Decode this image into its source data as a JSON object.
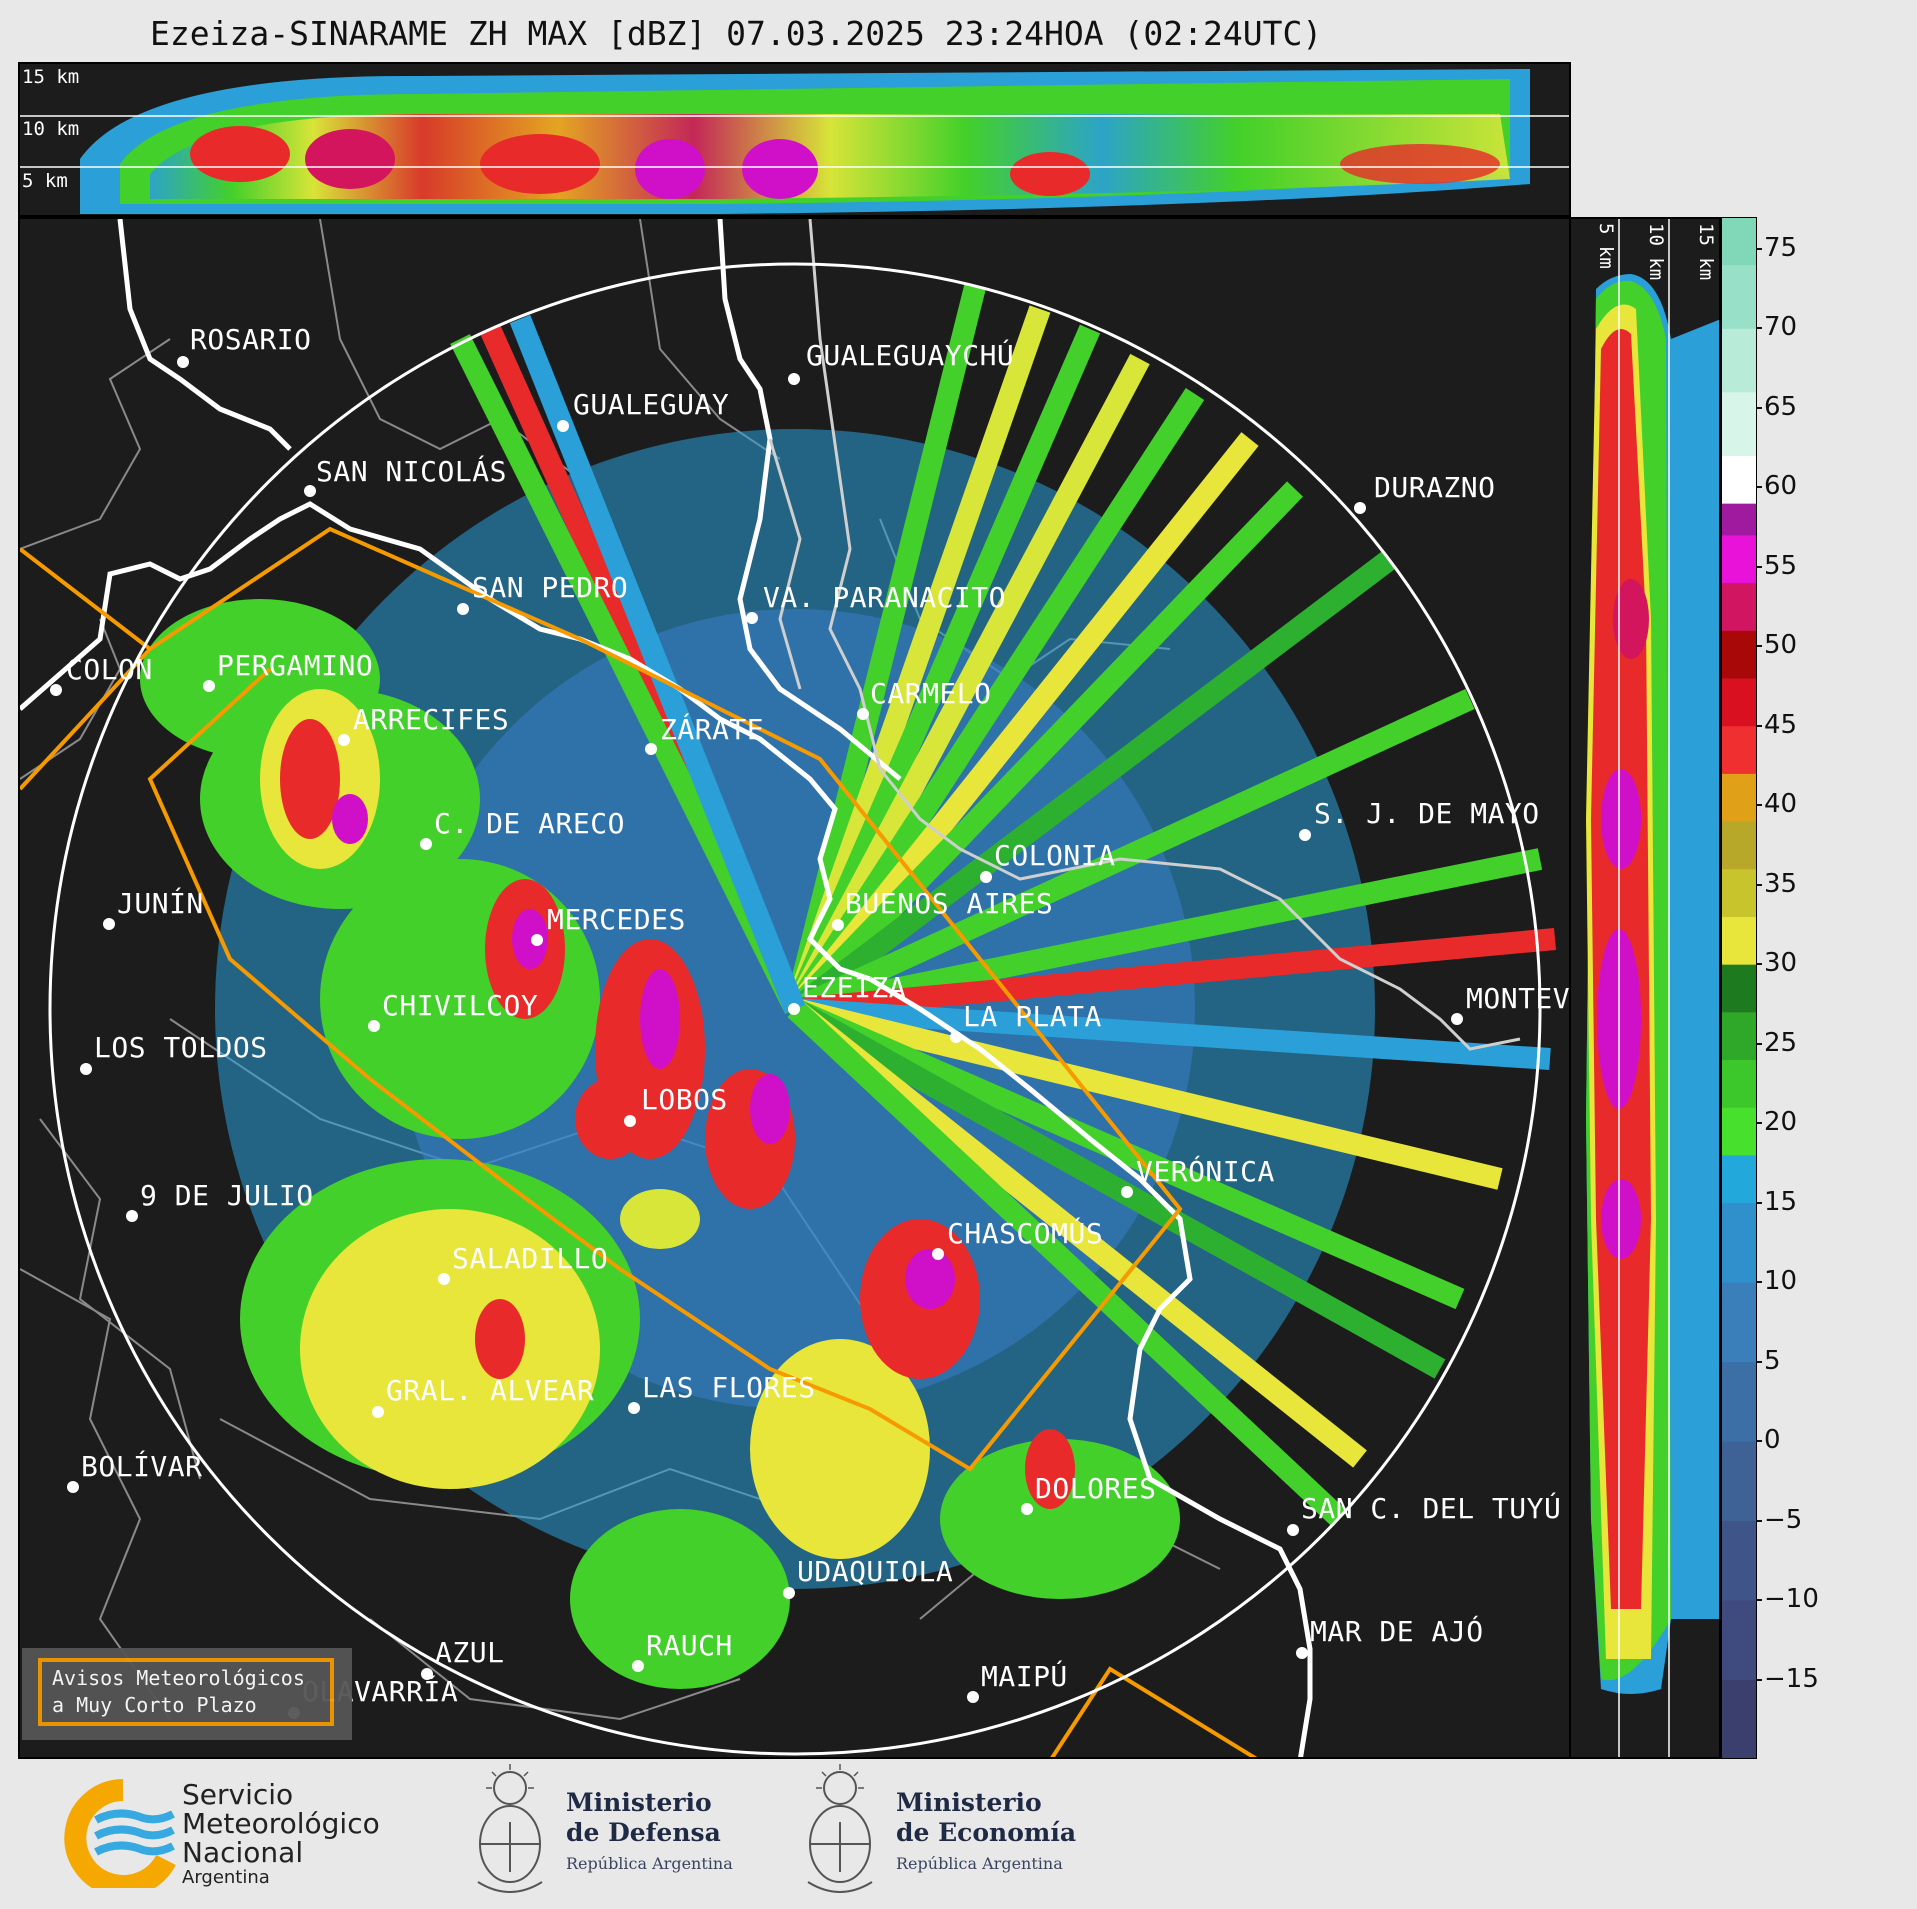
{
  "title": "Ezeiza-SINARAME ZH MAX [dBZ] 07.03.2025 23:24HOA (02:24UTC)",
  "top_panel": {
    "labels": [
      "15 km",
      "10 km",
      "5 km"
    ]
  },
  "side_panel": {
    "labels": [
      "5 km",
      "10 km",
      "15 km"
    ]
  },
  "colorbar": {
    "ticks": [
      "75",
      "70",
      "65",
      "60",
      "55",
      "50",
      "45",
      "40",
      "35",
      "30",
      "25",
      "20",
      "15",
      "10",
      "5",
      "0",
      "−5",
      "−10",
      "−15"
    ],
    "min": -20,
    "max": 77
  },
  "cities": [
    {
      "name": "ROSARIO"
    },
    {
      "name": "GUALEGUAYCHÚ"
    },
    {
      "name": "GUALEGUAY"
    },
    {
      "name": "SAN NICOLÁS"
    },
    {
      "name": "DURAZNO"
    },
    {
      "name": "SAN PEDRO"
    },
    {
      "name": "VA. PARANACITO"
    },
    {
      "name": "COLON"
    },
    {
      "name": "PERGAMINO"
    },
    {
      "name": "CARMELO"
    },
    {
      "name": "ARRECIFES"
    },
    {
      "name": "ZÁRATE"
    },
    {
      "name": "S. J. DE MAYO"
    },
    {
      "name": "C. DE ARECO"
    },
    {
      "name": "COLONIA"
    },
    {
      "name": "JUNÍN"
    },
    {
      "name": "BUENOS AIRES"
    },
    {
      "name": "MERCEDES"
    },
    {
      "name": "EZEIZA"
    },
    {
      "name": "MONTEV"
    },
    {
      "name": "CHIVILCOY"
    },
    {
      "name": "LA PLATA"
    },
    {
      "name": "LOS TOLDOS"
    },
    {
      "name": "LOBOS"
    },
    {
      "name": "VERÓNICA"
    },
    {
      "name": "9 DE JULIO"
    },
    {
      "name": "CHASCOMÚS"
    },
    {
      "name": "SALADILLO"
    },
    {
      "name": "GRAL. ALVEAR"
    },
    {
      "name": "LAS FLORES"
    },
    {
      "name": "BOLÍVAR"
    },
    {
      "name": "DOLORES"
    },
    {
      "name": "SAN C. DEL TUYÚ"
    },
    {
      "name": "UDAQUIOLA"
    },
    {
      "name": "RAUCH"
    },
    {
      "name": "MAR DE AJÓ"
    },
    {
      "name": "AZUL"
    },
    {
      "name": "OLAVARRÍA"
    },
    {
      "name": "MAIPÚ"
    }
  ],
  "warning_box": {
    "line1": "Avisos Meteorológicos",
    "line2": "a Muy Corto Plazo"
  },
  "logos": {
    "smn_line1": "Servicio",
    "smn_line2": "Meteorológico",
    "smn_line3": "Nacional",
    "smn_line4": "Argentina",
    "defensa_line1": "Ministerio",
    "defensa_line2": "de Defensa",
    "defensa_sub": "República Argentina",
    "economia_line1": "Ministerio",
    "economia_line2": "de Economía",
    "economia_sub": "República Argentina"
  },
  "colors": {
    "panel_bg": "#1c1c1c",
    "coast": "#ffffff",
    "border_orange": "#f59a00",
    "grey_lines": "#888888"
  }
}
